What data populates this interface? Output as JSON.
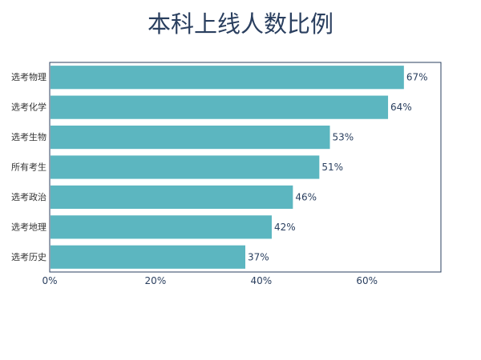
{
  "chart_data": {
    "type": "bar",
    "orientation": "horizontal",
    "title": "本科上线人数比例",
    "xlabel": "",
    "ylabel": "",
    "categories": [
      "选考物理",
      "选考化学",
      "选考生物",
      "所有考生",
      "选考政治",
      "选考地理",
      "选考历史"
    ],
    "values": [
      0.67,
      0.64,
      0.53,
      0.51,
      0.46,
      0.42,
      0.37
    ],
    "value_labels": [
      "67%",
      "64%",
      "53%",
      "51%",
      "46%",
      "42%",
      "37%"
    ],
    "xlim": [
      0,
      0.74
    ],
    "x_ticks": [
      0,
      0.2,
      0.4,
      0.6
    ],
    "x_tick_labels": [
      "0%",
      "20%",
      "40%",
      "60%"
    ],
    "grid": false,
    "legend": "none",
    "bar_color": "#5cb6c0",
    "text_color": "#2a3f5f",
    "frame_color": "#2a3f5f"
  }
}
